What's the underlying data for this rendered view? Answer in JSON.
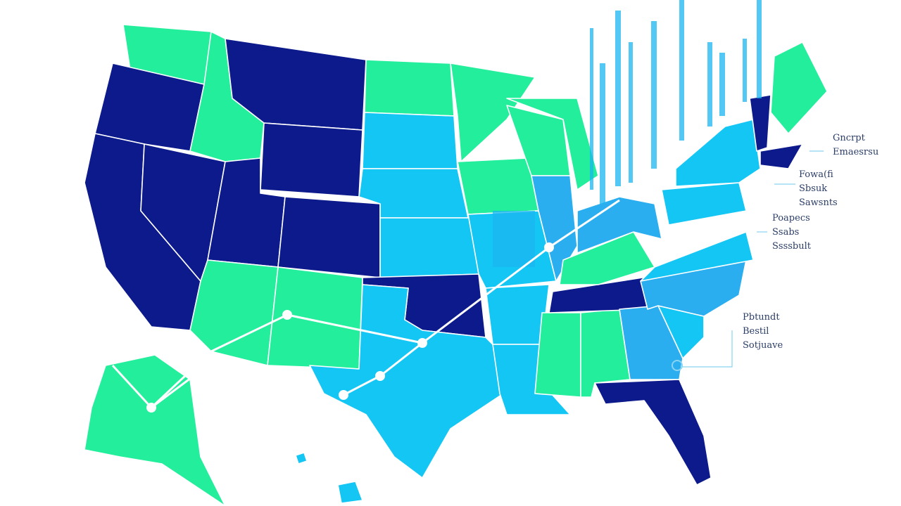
{
  "annotations": [
    {
      "lines": [
        "Gncrpt",
        "Emaesrsu"
      ]
    },
    {
      "lines": [
        "Fowa(fi",
        "Sbsuk",
        "Sawsnts"
      ]
    },
    {
      "lines": [
        "Poapecs",
        "Ssabs",
        "Ssssbult"
      ]
    },
    {
      "lines": [
        "Pbtundt",
        "Bestil",
        "Sotjuave"
      ]
    }
  ]
}
